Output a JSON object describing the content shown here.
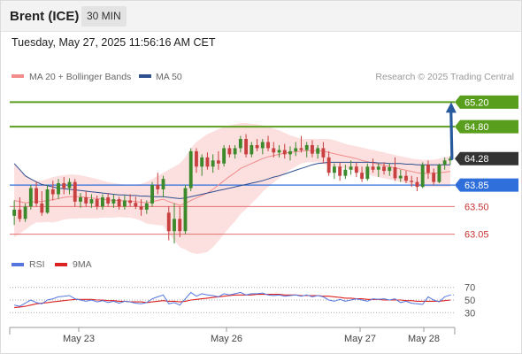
{
  "header": {
    "title": "Brent (ICE)",
    "timeframe": "30 MIN",
    "timestamp": "Tuesday, May 27, 2025 11:56:16 AM CET"
  },
  "legend": {
    "items": [
      {
        "label": "MA 20 + Bollinger Bands",
        "color": "#f28c8c"
      },
      {
        "label": "MA 50",
        "color": "#2f4f8f"
      }
    ],
    "credit": "Research © 2025 Trading Central"
  },
  "rsi_legend": {
    "items": [
      {
        "label": "RSI",
        "color": "#5577dd"
      },
      {
        "label": "9MA",
        "color": "#dd2222"
      }
    ]
  },
  "colors": {
    "resistance": "#5a9e1e",
    "support": "#2f6fdb",
    "support_weak": "#e47070",
    "up_candle": "#3c8a2c",
    "down_candle": "#c84040",
    "band_fill": "#fbd9d9",
    "price_tag": "#333333",
    "arrow": "#2a5a9e"
  },
  "chart_data": [
    {
      "type": "candlestick",
      "y_axis": {
        "min": 62.8,
        "max": 65.45
      },
      "x_axis": {
        "ticks": [
          "May 23",
          "May 26",
          "May 27",
          "May 28"
        ]
      },
      "last_price": 64.28,
      "levels": [
        {
          "value": 65.2,
          "label": "65.20",
          "kind": "resistance"
        },
        {
          "value": 64.8,
          "label": "64.80",
          "kind": "resistance"
        },
        {
          "value": 63.85,
          "label": "63.85",
          "kind": "pivot"
        },
        {
          "value": 63.5,
          "label": "63.50",
          "kind": "support"
        },
        {
          "value": 63.05,
          "label": "63.05",
          "kind": "support"
        }
      ],
      "price_label": "64.28",
      "projection": {
        "from": 64.28,
        "to": 65.2
      },
      "candles": [
        {
          "o": 63.35,
          "h": 63.6,
          "l": 63.2,
          "c": 63.45
        },
        {
          "o": 63.45,
          "h": 63.65,
          "l": 63.25,
          "c": 63.3
        },
        {
          "o": 63.3,
          "h": 63.55,
          "l": 63.25,
          "c": 63.5
        },
        {
          "o": 63.5,
          "h": 63.85,
          "l": 63.45,
          "c": 63.8
        },
        {
          "o": 63.8,
          "h": 63.9,
          "l": 63.5,
          "c": 63.55
        },
        {
          "o": 63.55,
          "h": 63.75,
          "l": 63.35,
          "c": 63.4
        },
        {
          "o": 63.4,
          "h": 63.85,
          "l": 63.38,
          "c": 63.78
        },
        {
          "o": 63.78,
          "h": 63.92,
          "l": 63.6,
          "c": 63.7
        },
        {
          "o": 63.7,
          "h": 63.95,
          "l": 63.62,
          "c": 63.88
        },
        {
          "o": 63.88,
          "h": 63.98,
          "l": 63.7,
          "c": 63.8
        },
        {
          "o": 63.8,
          "h": 63.96,
          "l": 63.7,
          "c": 63.9
        },
        {
          "o": 63.9,
          "h": 63.95,
          "l": 63.5,
          "c": 63.58
        },
        {
          "o": 63.58,
          "h": 63.72,
          "l": 63.48,
          "c": 63.65
        },
        {
          "o": 63.65,
          "h": 63.75,
          "l": 63.5,
          "c": 63.55
        },
        {
          "o": 63.55,
          "h": 63.7,
          "l": 63.48,
          "c": 63.62
        },
        {
          "o": 63.62,
          "h": 63.68,
          "l": 63.45,
          "c": 63.5
        },
        {
          "o": 63.5,
          "h": 63.7,
          "l": 63.45,
          "c": 63.65
        },
        {
          "o": 63.65,
          "h": 63.72,
          "l": 63.5,
          "c": 63.55
        },
        {
          "o": 63.55,
          "h": 63.7,
          "l": 63.48,
          "c": 63.62
        },
        {
          "o": 63.62,
          "h": 63.66,
          "l": 63.45,
          "c": 63.5
        },
        {
          "o": 63.5,
          "h": 63.68,
          "l": 63.45,
          "c": 63.6
        },
        {
          "o": 63.6,
          "h": 63.7,
          "l": 63.5,
          "c": 63.56
        },
        {
          "o": 63.56,
          "h": 63.66,
          "l": 63.46,
          "c": 63.5
        },
        {
          "o": 63.5,
          "h": 63.62,
          "l": 63.35,
          "c": 63.45
        },
        {
          "o": 63.45,
          "h": 63.6,
          "l": 63.38,
          "c": 63.55
        },
        {
          "o": 63.55,
          "h": 63.9,
          "l": 63.5,
          "c": 63.85
        },
        {
          "o": 63.85,
          "h": 64.05,
          "l": 63.7,
          "c": 63.78
        },
        {
          "o": 63.78,
          "h": 64.0,
          "l": 63.65,
          "c": 63.95
        },
        {
          "o": 63.4,
          "h": 63.5,
          "l": 62.95,
          "c": 63.1
        },
        {
          "o": 63.1,
          "h": 63.55,
          "l": 62.9,
          "c": 63.3
        },
        {
          "o": 63.3,
          "h": 63.5,
          "l": 63.0,
          "c": 63.1
        },
        {
          "o": 63.1,
          "h": 63.85,
          "l": 63.05,
          "c": 63.8
        },
        {
          "o": 63.8,
          "h": 64.45,
          "l": 63.75,
          "c": 64.4
        },
        {
          "o": 64.4,
          "h": 64.45,
          "l": 64.05,
          "c": 64.15
        },
        {
          "o": 64.15,
          "h": 64.35,
          "l": 64.0,
          "c": 64.3
        },
        {
          "o": 64.3,
          "h": 64.38,
          "l": 64.1,
          "c": 64.15
        },
        {
          "o": 64.15,
          "h": 64.35,
          "l": 64.05,
          "c": 64.25
        },
        {
          "o": 64.25,
          "h": 64.4,
          "l": 64.1,
          "c": 64.2
        },
        {
          "o": 64.2,
          "h": 64.5,
          "l": 64.15,
          "c": 64.45
        },
        {
          "o": 64.45,
          "h": 64.5,
          "l": 64.3,
          "c": 64.35
        },
        {
          "o": 64.35,
          "h": 64.5,
          "l": 64.28,
          "c": 64.45
        },
        {
          "o": 64.45,
          "h": 64.65,
          "l": 64.38,
          "c": 64.6
        },
        {
          "o": 64.6,
          "h": 64.68,
          "l": 64.3,
          "c": 64.35
        },
        {
          "o": 64.35,
          "h": 64.55,
          "l": 64.3,
          "c": 64.5
        },
        {
          "o": 64.5,
          "h": 64.6,
          "l": 64.4,
          "c": 64.45
        },
        {
          "o": 64.45,
          "h": 64.6,
          "l": 64.35,
          "c": 64.55
        },
        {
          "o": 64.55,
          "h": 64.65,
          "l": 64.4,
          "c": 64.45
        },
        {
          "o": 64.45,
          "h": 64.55,
          "l": 64.3,
          "c": 64.38
        },
        {
          "o": 64.38,
          "h": 64.5,
          "l": 64.3,
          "c": 64.42
        },
        {
          "o": 64.42,
          "h": 64.52,
          "l": 64.28,
          "c": 64.35
        },
        {
          "o": 64.35,
          "h": 64.48,
          "l": 64.25,
          "c": 64.4
        },
        {
          "o": 64.4,
          "h": 64.55,
          "l": 64.32,
          "c": 64.45
        },
        {
          "o": 64.45,
          "h": 64.65,
          "l": 64.38,
          "c": 64.42
        },
        {
          "o": 64.42,
          "h": 64.55,
          "l": 64.3,
          "c": 64.5
        },
        {
          "o": 64.5,
          "h": 64.58,
          "l": 64.3,
          "c": 64.36
        },
        {
          "o": 64.36,
          "h": 64.5,
          "l": 64.28,
          "c": 64.45
        },
        {
          "o": 64.45,
          "h": 64.55,
          "l": 64.2,
          "c": 64.3
        },
        {
          "o": 64.3,
          "h": 64.4,
          "l": 64.0,
          "c": 64.05
        },
        {
          "o": 64.05,
          "h": 64.2,
          "l": 63.95,
          "c": 64.15
        },
        {
          "o": 64.15,
          "h": 64.22,
          "l": 63.92,
          "c": 64.0
        },
        {
          "o": 64.0,
          "h": 64.18,
          "l": 63.95,
          "c": 64.1
        },
        {
          "o": 64.1,
          "h": 64.25,
          "l": 64.02,
          "c": 64.15
        },
        {
          "o": 64.15,
          "h": 64.22,
          "l": 63.98,
          "c": 64.05
        },
        {
          "o": 64.05,
          "h": 64.15,
          "l": 63.9,
          "c": 63.95
        },
        {
          "o": 63.95,
          "h": 64.2,
          "l": 63.92,
          "c": 64.15
        },
        {
          "o": 64.15,
          "h": 64.28,
          "l": 64.05,
          "c": 64.1
        },
        {
          "o": 64.1,
          "h": 64.2,
          "l": 63.98,
          "c": 64.15
        },
        {
          "o": 64.15,
          "h": 64.22,
          "l": 64.02,
          "c": 64.08
        },
        {
          "o": 64.08,
          "h": 64.2,
          "l": 64.0,
          "c": 64.14
        },
        {
          "o": 64.14,
          "h": 64.3,
          "l": 63.92,
          "c": 63.96
        },
        {
          "o": 63.96,
          "h": 64.1,
          "l": 63.9,
          "c": 64.0
        },
        {
          "o": 64.0,
          "h": 64.08,
          "l": 63.88,
          "c": 63.92
        },
        {
          "o": 63.92,
          "h": 64.0,
          "l": 63.82,
          "c": 63.9
        },
        {
          "o": 63.9,
          "h": 63.98,
          "l": 63.75,
          "c": 63.82
        },
        {
          "o": 63.82,
          "h": 64.22,
          "l": 63.8,
          "c": 64.18
        },
        {
          "o": 64.18,
          "h": 64.25,
          "l": 63.95,
          "c": 64.05
        },
        {
          "o": 64.05,
          "h": 64.12,
          "l": 63.85,
          "c": 63.9
        },
        {
          "o": 63.9,
          "h": 64.2,
          "l": 63.88,
          "c": 64.18
        },
        {
          "o": 64.18,
          "h": 64.3,
          "l": 64.1,
          "c": 64.25
        },
        {
          "o": 64.25,
          "h": 64.32,
          "l": 64.18,
          "c": 64.28
        }
      ],
      "ma20": [
        63.6,
        63.58,
        63.56,
        63.57,
        63.58,
        63.58,
        63.6,
        63.61,
        63.63,
        63.65,
        63.66,
        63.66,
        63.66,
        63.65,
        63.64,
        63.63,
        63.62,
        63.61,
        63.6,
        63.6,
        63.59,
        63.59,
        63.58,
        63.57,
        63.56,
        63.58,
        63.6,
        63.62,
        63.58,
        63.55,
        63.52,
        63.55,
        63.6,
        63.64,
        63.68,
        63.72,
        63.78,
        63.85,
        63.92,
        63.99,
        64.05,
        64.12,
        64.16,
        64.2,
        64.24,
        64.28,
        64.31,
        64.33,
        64.35,
        64.37,
        64.38,
        64.39,
        64.4,
        64.41,
        64.41,
        64.41,
        64.4,
        64.38,
        64.36,
        64.34,
        64.32,
        64.3,
        64.28,
        64.25,
        64.23,
        64.21,
        64.19,
        64.17,
        64.15,
        64.13,
        64.11,
        64.09,
        64.07,
        64.05,
        64.04,
        64.04,
        64.04,
        64.05,
        64.06,
        64.07
      ],
      "ma50": [
        64.2,
        64.1,
        64.0,
        63.95,
        63.9,
        63.86,
        63.84,
        63.82,
        63.8,
        63.79,
        63.78,
        63.77,
        63.76,
        63.75,
        63.74,
        63.73,
        63.72,
        63.71,
        63.7,
        63.69,
        63.69,
        63.68,
        63.68,
        63.67,
        63.67,
        63.66,
        63.66,
        63.66,
        63.65,
        63.64,
        63.63,
        63.64,
        63.66,
        63.68,
        63.7,
        63.72,
        63.74,
        63.76,
        63.78,
        63.8,
        63.82,
        63.84,
        63.86,
        63.88,
        63.9,
        63.92,
        63.95,
        63.98,
        64.0,
        64.03,
        64.06,
        64.09,
        64.12,
        64.15,
        64.18,
        64.2,
        64.21,
        64.22,
        64.22,
        64.22,
        64.22,
        64.22,
        64.22,
        64.22,
        64.22,
        64.22,
        64.21,
        64.21,
        64.2,
        64.2,
        64.2,
        64.19,
        64.19,
        64.18,
        64.18,
        64.18,
        64.18,
        64.18,
        64.18,
        64.18
      ],
      "bb_upper": [
        64.2,
        64.1,
        64.0,
        63.95,
        63.92,
        63.92,
        63.95,
        63.98,
        64.0,
        64.01,
        64.02,
        64.02,
        64.01,
        63.99,
        63.97,
        63.95,
        63.92,
        63.9,
        63.88,
        63.87,
        63.86,
        63.86,
        63.86,
        63.87,
        63.9,
        63.95,
        64.0,
        64.05,
        64.1,
        64.15,
        64.2,
        64.3,
        64.45,
        64.55,
        64.62,
        64.68,
        64.72,
        64.76,
        64.79,
        64.82,
        64.84,
        64.86,
        64.86,
        64.85,
        64.84,
        64.82,
        64.8,
        64.77,
        64.74,
        64.7,
        64.66,
        64.63,
        64.6,
        64.6,
        64.6,
        64.6,
        64.6,
        64.6,
        64.58,
        64.55,
        64.52,
        64.5,
        64.48,
        64.46,
        64.44,
        64.42,
        64.4,
        64.38,
        64.36,
        64.34,
        64.32,
        64.3,
        64.28,
        64.27,
        64.26,
        64.26,
        64.26,
        64.28,
        64.3,
        64.32
      ],
      "bb_lower": [
        63.0,
        63.06,
        63.12,
        63.19,
        63.24,
        63.24,
        63.25,
        63.24,
        63.26,
        63.29,
        63.3,
        63.3,
        63.31,
        63.31,
        63.31,
        63.31,
        63.32,
        63.32,
        63.32,
        63.33,
        63.32,
        63.32,
        63.3,
        63.27,
        63.22,
        63.21,
        63.2,
        63.19,
        63.06,
        62.95,
        62.84,
        62.8,
        62.75,
        62.73,
        62.74,
        62.76,
        62.84,
        62.94,
        63.05,
        63.16,
        63.26,
        63.38,
        63.46,
        63.55,
        63.64,
        63.74,
        63.82,
        63.89,
        63.96,
        64.04,
        64.1,
        64.15,
        64.2,
        64.22,
        64.22,
        64.22,
        64.2,
        64.16,
        64.14,
        64.13,
        64.12,
        64.1,
        64.08,
        64.04,
        64.02,
        64.0,
        63.98,
        63.96,
        63.94,
        63.92,
        63.9,
        63.88,
        63.86,
        63.83,
        63.82,
        63.82,
        63.82,
        63.82,
        63.82,
        63.82
      ]
    },
    {
      "type": "line",
      "y_axis": {
        "min": 15,
        "max": 85
      },
      "levels": [
        {
          "value": 70,
          "label": "70"
        },
        {
          "value": 50,
          "label": "50"
        },
        {
          "value": 30,
          "label": "30"
        }
      ],
      "series": [
        {
          "name": "RSI",
          "values": [
            42,
            40,
            45,
            50,
            46,
            44,
            50,
            52,
            55,
            56,
            57,
            52,
            50,
            48,
            50,
            47,
            49,
            46,
            48,
            45,
            48,
            47,
            45,
            44,
            46,
            52,
            55,
            58,
            44,
            46,
            42,
            52,
            62,
            56,
            60,
            58,
            57,
            55,
            60,
            58,
            60,
            62,
            58,
            60,
            60,
            61,
            58,
            57,
            58,
            56,
            57,
            58,
            56,
            58,
            55,
            57,
            55,
            50,
            48,
            51,
            48,
            50,
            52,
            50,
            48,
            52,
            51,
            52,
            50,
            52,
            46,
            48,
            45,
            44,
            43,
            55,
            50,
            47,
            55,
            58
          ]
        },
        {
          "name": "9MA",
          "values": [
            38,
            39,
            40,
            42,
            44,
            45,
            46,
            47,
            48,
            49,
            50,
            51,
            51,
            51,
            51,
            50,
            50,
            49,
            49,
            48,
            48,
            47,
            47,
            47,
            46,
            47,
            48,
            49,
            48,
            48,
            47,
            48,
            50,
            51,
            52,
            53,
            54,
            55,
            56,
            57,
            58,
            58,
            58,
            58,
            59,
            59,
            59,
            59,
            59,
            58,
            58,
            58,
            57,
            57,
            57,
            57,
            56,
            56,
            55,
            54,
            53,
            53,
            52,
            52,
            51,
            51,
            51,
            50,
            50,
            50,
            50,
            49,
            49,
            48,
            48,
            48,
            48,
            48,
            49,
            50
          ]
        }
      ]
    }
  ]
}
